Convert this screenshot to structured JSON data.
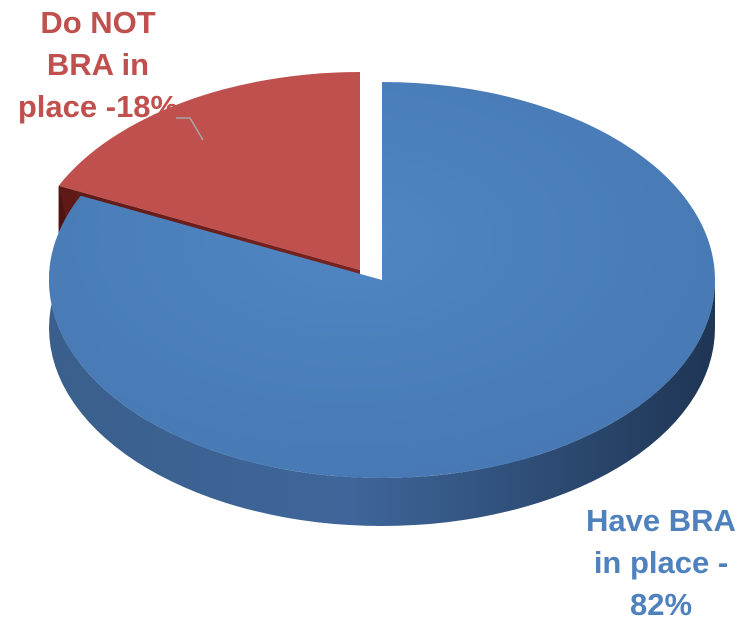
{
  "chart_data": {
    "type": "pie",
    "style": "3d-exploded",
    "legend": "none",
    "slices": [
      {
        "label": "Have BRA in place",
        "value": 82,
        "color": "#4F81BD",
        "data_label": "Have BRA\nin place -\n82%",
        "label_color": "#4F81BD"
      },
      {
        "label": "Do NOT BRA in place",
        "value": 18,
        "color": "#C0504D",
        "data_label": "Do NOT\nBRA in\nplace -18%",
        "label_color": "#C0504D"
      }
    ]
  }
}
